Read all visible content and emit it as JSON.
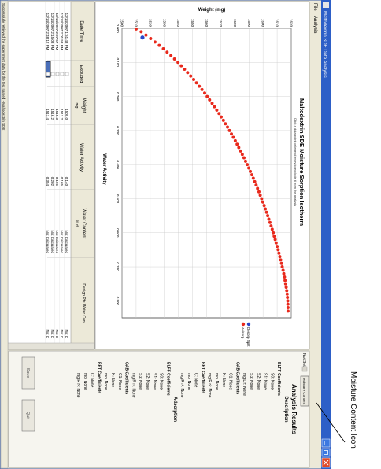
{
  "window": {
    "title": "Maltodextrin SDE Data Analysis"
  },
  "menu": {
    "file": "File",
    "analysis": "Analysis"
  },
  "chart": {
    "title": "Maltodextrin SDE Moisture Sorption Isotherm",
    "subtitle": "Click a data point or legend entry to exclude it from the analysis",
    "xlabel": "Water Activity",
    "ylabel": "Weight (mg)",
    "xticks": [
      "0.000",
      "0.100",
      "0.200",
      "0.300",
      "0.400",
      "0.500",
      "0.600",
      "0.700",
      "0.800"
    ],
    "yticks": [
      "1500",
      "1510",
      "1520",
      "1530",
      "1540",
      "1550",
      "1560",
      "1570",
      "1580",
      "1590",
      "1600",
      "1610",
      "1620"
    ],
    "legend": [
      "Desorp Split",
      "Adsorp"
    ]
  },
  "chart_data": {
    "type": "scatter",
    "title": "Maltodextrin SDE Moisture Sorption Isotherm",
    "xlabel": "Water Activity",
    "ylabel": "Weight (mg)",
    "xlim": [
      0,
      0.85
    ],
    "ylim": [
      1500,
      1620
    ],
    "grid": true,
    "legend_position": "right",
    "series": [
      {
        "name": "Adsorp",
        "color": "#e8291c",
        "x": [
          0.002,
          0.01,
          0.02,
          0.03,
          0.04,
          0.05,
          0.06,
          0.07,
          0.08,
          0.09,
          0.1,
          0.11,
          0.12,
          0.13,
          0.14,
          0.15,
          0.16,
          0.17,
          0.18,
          0.19,
          0.2,
          0.21,
          0.22,
          0.23,
          0.24,
          0.25,
          0.26,
          0.27,
          0.28,
          0.29,
          0.3,
          0.31,
          0.32,
          0.33,
          0.34,
          0.35,
          0.36,
          0.37,
          0.38,
          0.39,
          0.4,
          0.41,
          0.42,
          0.43,
          0.44,
          0.45,
          0.46,
          0.47,
          0.48,
          0.49,
          0.5,
          0.51,
          0.52,
          0.53,
          0.54,
          0.55,
          0.56,
          0.57,
          0.58,
          0.59,
          0.6,
          0.61,
          0.62,
          0.63,
          0.64,
          0.65,
          0.66,
          0.67,
          0.68,
          0.69,
          0.7,
          0.71,
          0.72,
          0.73,
          0.74,
          0.75,
          0.76,
          0.77,
          0.78,
          0.79,
          0.8,
          0.81,
          0.82,
          0.83
        ],
        "y": [
          1510.0,
          1513.6,
          1517.0,
          1520.3,
          1523.4,
          1526.4,
          1529.3,
          1532.0,
          1534.7,
          1537.2,
          1539.7,
          1542.0,
          1544.3,
          1546.5,
          1548.7,
          1550.8,
          1552.8,
          1554.8,
          1556.7,
          1558.6,
          1560.4,
          1562.1,
          1563.9,
          1565.5,
          1567.2,
          1568.8,
          1570.3,
          1571.9,
          1573.3,
          1574.8,
          1576.2,
          1577.6,
          1578.9,
          1580.3,
          1581.6,
          1582.8,
          1584.1,
          1585.3,
          1586.5,
          1587.6,
          1588.8,
          1589.9,
          1591.0,
          1592.1,
          1593.1,
          1594.1,
          1595.1,
          1596.1,
          1597.1,
          1598.0,
          1599.0,
          1599.9,
          1600.8,
          1601.6,
          1602.5,
          1603.3,
          1604.1,
          1604.9,
          1605.7,
          1606.5,
          1607.2,
          1607.9,
          1608.6,
          1609.3,
          1610.0,
          1610.7,
          1611.3,
          1611.9,
          1612.5,
          1613.1,
          1613.6,
          1614.2,
          1614.7,
          1615.2,
          1615.6,
          1616.0,
          1616.4,
          1616.8,
          1617.1,
          1617.3,
          1617.5,
          1617.6,
          1617.7,
          1617.7
        ]
      },
      {
        "name": "Desorp Split",
        "color": "#2a46c8",
        "x": [
          0.027
        ],
        "y": [
          1514.5
        ]
      }
    ]
  },
  "table": {
    "headers": [
      "Date Time",
      "Excluded",
      "Weight",
      "Water Activity",
      "Water Content",
      "Design Pts Water Con"
    ],
    "units": [
      "",
      "",
      "mg",
      "",
      "% dt",
      ""
    ],
    "rows": [
      [
        "12/14/2007 1:51:43 PM",
        "",
        "1509.0",
        "0.140",
        "Not Calculated",
        "Not C"
      ],
      [
        "12/14/2007 2:01:53 PM",
        "",
        "1513.2",
        "0.165",
        "Not Calculated",
        "Not C"
      ],
      [
        "12/14/2007 2:07:57 PM",
        "",
        "1515.3",
        "0.186",
        "Not Calculated",
        "Not C"
      ],
      [
        "12/14/2007 2:15:03 PM",
        "",
        "1516.2",
        "0.202",
        "Not Calculated",
        "Not C"
      ],
      [
        "12/14/2007 2:48:12 PM",
        "",
        "1517.4",
        "0.354",
        "Not Calculated",
        "Not C"
      ]
    ]
  },
  "status": {
    "text": "Successfully retrieved the experiment data for the test named - Maltodextrin SDE"
  },
  "results": {
    "toolbar_left": "Not Set",
    "toolbar_right": "Moisture Content",
    "title": "Analysis Results",
    "lines": [
      "Description",
      "BLFF Coefficients",
      "S0: None",
      "S1: None",
      "S2: None",
      "S3: None",
      "mg.L/r: None",
      "GAB Coefficients",
      "C1: None",
      "K: None",
      "mo: None",
      "mg.R r²: None",
      "BET Coefficients",
      "C: None",
      "mo: None",
      "mg.R r²: None",
      "Adsorption",
      "BLFF Coefficients",
      "S0: None",
      "S1: None",
      "S2: None",
      "S3: None",
      "mg.R r²: None",
      "GAB Coefficients",
      "C1: None",
      "K: None",
      "mo: None",
      "BET Coefficients",
      "C: None",
      "mo: None",
      "mg.R r²: None"
    ],
    "btn_save": "Save",
    "btn_quit": "Quit"
  },
  "annotation": {
    "label": "Moisture Content Icon"
  },
  "colors": {
    "titlebar": "#2d5fc7",
    "window_bg": "#ece9d8",
    "series": "#e8291c",
    "marker": "#2a46c8"
  }
}
